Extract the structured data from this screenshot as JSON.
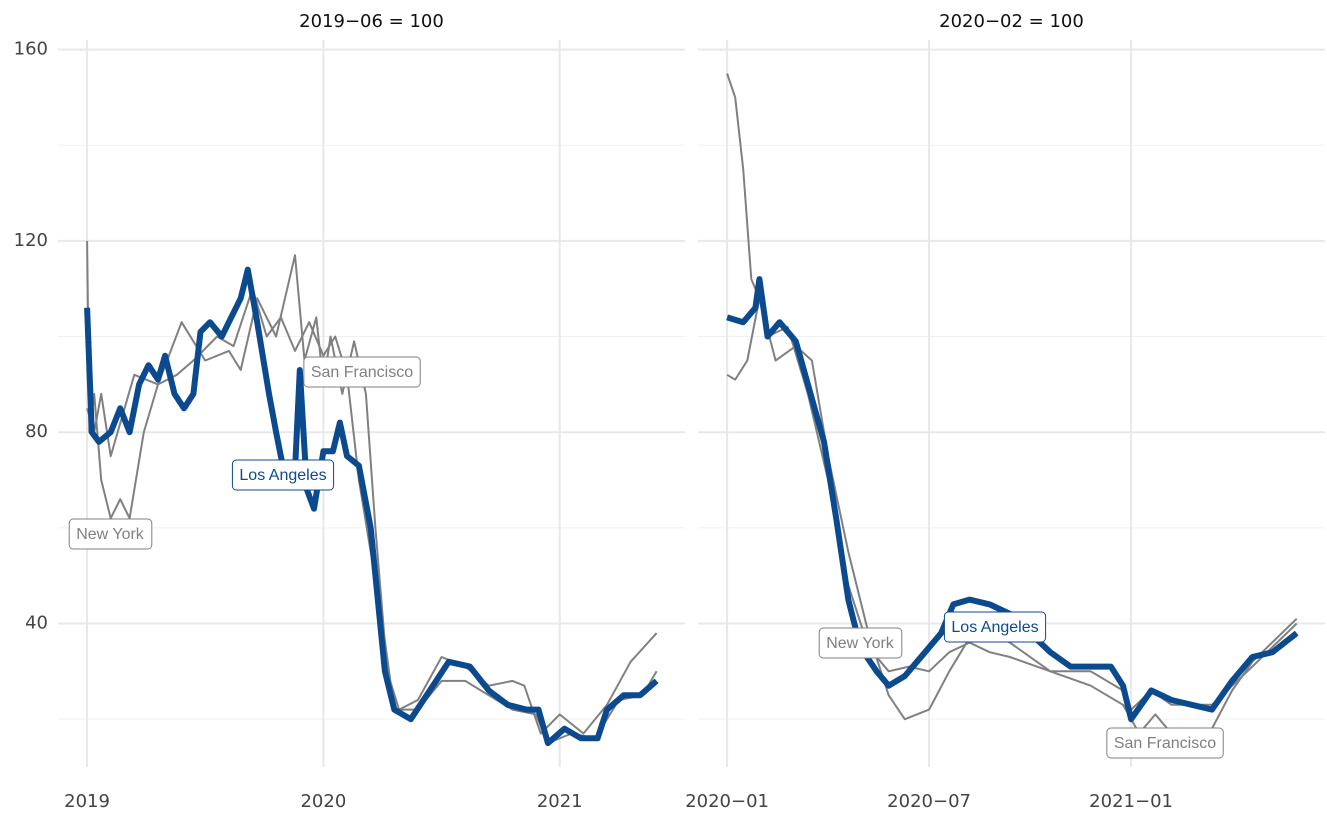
{
  "chart_data": [
    {
      "type": "line",
      "title": "2019−06 = 100",
      "xlim": [
        2018.877,
        2021.53
      ],
      "xticks": [
        2019,
        2020,
        2021
      ],
      "ylim": [
        10,
        162
      ],
      "yticks": [
        40,
        80,
        120,
        160
      ],
      "y_minor_ticks": [
        20,
        60,
        100,
        140
      ],
      "grid": true,
      "series": [
        {
          "name": "Los Angeles",
          "color": "#0b4a8f",
          "x": [
            2019.0,
            2019.02,
            2019.05,
            2019.1,
            2019.14,
            2019.18,
            2019.22,
            2019.26,
            2019.3,
            2019.33,
            2019.37,
            2019.41,
            2019.45,
            2019.48,
            2019.52,
            2019.57,
            2019.61,
            2019.65,
            2019.68,
            2019.72,
            2019.77,
            2019.8,
            2019.84,
            2019.88,
            2019.9,
            2019.93,
            2019.96,
            2020.0,
            2020.04,
            2020.07,
            2020.1,
            2020.15,
            2020.2,
            2020.23,
            2020.26,
            2020.3,
            2020.37,
            2020.45,
            2020.53,
            2020.62,
            2020.7,
            2020.78,
            2020.86,
            2020.91,
            2020.95,
            2021.02,
            2021.09,
            2021.16,
            2021.2,
            2021.27,
            2021.34,
            2021.41
          ],
          "values": [
            106,
            80,
            78,
            80,
            85,
            80,
            90,
            94,
            91,
            96,
            88,
            85,
            88,
            101,
            103,
            100,
            104,
            108,
            114,
            103,
            88,
            80,
            70,
            72,
            93,
            68,
            64,
            76,
            76,
            82,
            75,
            73,
            60,
            45,
            30,
            22,
            20,
            26,
            32,
            31,
            26,
            23,
            22,
            22,
            15,
            18,
            16,
            16,
            22,
            25,
            25,
            28
          ]
        },
        {
          "name": "New York",
          "color": "#808080",
          "x": [
            2019.0,
            2019.01,
            2019.03,
            2019.06,
            2019.1,
            2019.14,
            2019.18,
            2019.24,
            2019.3,
            2019.38,
            2019.45,
            2019.55,
            2019.62,
            2019.7,
            2019.76,
            2019.82,
            2019.88,
            2019.94,
            2020.0,
            2020.05,
            2020.1,
            2020.15,
            2020.2,
            2020.25,
            2020.3,
            2020.4,
            2020.5,
            2020.6,
            2020.7,
            2020.8,
            2020.9,
            2020.95,
            2021.05,
            2021.15,
            2021.25,
            2021.35,
            2021.41
          ],
          "values": [
            120,
            80,
            88,
            70,
            62,
            66,
            62,
            80,
            90,
            92,
            95,
            100,
            98,
            110,
            100,
            104,
            97,
            103,
            96,
            100,
            92,
            70,
            55,
            40,
            22,
            22,
            28,
            28,
            25,
            22,
            21,
            15,
            17,
            16,
            24,
            25,
            30
          ]
        },
        {
          "name": "San Francisco",
          "color": "#808080",
          "x": [
            2019.0,
            2019.03,
            2019.06,
            2019.1,
            2019.2,
            2019.3,
            2019.4,
            2019.5,
            2019.6,
            2019.65,
            2019.72,
            2019.8,
            2019.88,
            2019.92,
            2019.97,
            2020.0,
            2020.03,
            2020.08,
            2020.13,
            2020.18,
            2020.22,
            2020.27,
            2020.32,
            2020.4,
            2020.5,
            2020.6,
            2020.7,
            2020.8,
            2020.85,
            2020.92,
            2021.0,
            2021.1,
            2021.2,
            2021.3,
            2021.41
          ],
          "values": [
            85,
            80,
            88,
            75,
            92,
            90,
            103,
            95,
            97,
            93,
            108,
            100,
            117,
            95,
            104,
            90,
            100,
            88,
            99,
            88,
            60,
            30,
            22,
            24,
            33,
            31,
            27,
            28,
            27,
            17,
            21,
            17,
            23,
            32,
            38
          ]
        }
      ]
    },
    {
      "type": "line",
      "title": "2020−02 = 100",
      "xlim": [
        2019.928,
        2021.48
      ],
      "xticks": [
        {
          "value": 2020.0,
          "label": "2020−01"
        },
        {
          "value": 2020.5,
          "label": "2020−07"
        },
        {
          "value": 2021.0,
          "label": "2021−01"
        }
      ],
      "ylim": [
        10,
        162
      ],
      "yticks": [
        40,
        80,
        120,
        160
      ],
      "y_minor_ticks": [
        20,
        60,
        100,
        140
      ],
      "grid": true,
      "series": [
        {
          "name": "Los Angeles",
          "color": "#0b4a8f",
          "x": [
            2020.0,
            2020.04,
            2020.07,
            2020.08,
            2020.1,
            2020.13,
            2020.17,
            2020.2,
            2020.24,
            2020.27,
            2020.3,
            2020.33,
            2020.37,
            2020.4,
            2020.44,
            2020.48,
            2020.53,
            2020.56,
            2020.6,
            2020.65,
            2020.7,
            2020.75,
            2020.8,
            2020.85,
            2020.9,
            2020.95,
            2020.98,
            2021.0,
            2021.05,
            2021.1,
            2021.15,
            2021.2,
            2021.25,
            2021.3,
            2021.35,
            2021.41
          ],
          "values": [
            104,
            103,
            106,
            112,
            100,
            103,
            99,
            90,
            78,
            62,
            45,
            35,
            30,
            27,
            29,
            33,
            38,
            44,
            45,
            44,
            42,
            38,
            34,
            31,
            31,
            31,
            27,
            20,
            26,
            24,
            23,
            22,
            28,
            33,
            34,
            38
          ]
        },
        {
          "name": "New York",
          "color": "#808080",
          "x": [
            2020.0,
            2020.02,
            2020.04,
            2020.06,
            2020.08,
            2020.1,
            2020.15,
            2020.2,
            2020.25,
            2020.3,
            2020.35,
            2020.4,
            2020.45,
            2020.5,
            2020.55,
            2020.6,
            2020.65,
            2020.7,
            2020.8,
            2020.9,
            2020.98,
            2021.0,
            2021.05,
            2021.1,
            2021.2,
            2021.3,
            2021.41
          ],
          "values": [
            155,
            150,
            135,
            112,
            108,
            100,
            102,
            88,
            70,
            48,
            35,
            30,
            31,
            30,
            34,
            36,
            34,
            33,
            30,
            30,
            26,
            22,
            26,
            23,
            23,
            31,
            40
          ]
        },
        {
          "name": "San Francisco",
          "color": "#808080",
          "x": [
            2020.0,
            2020.02,
            2020.05,
            2020.08,
            2020.12,
            2020.17,
            2020.21,
            2020.25,
            2020.3,
            2020.35,
            2020.4,
            2020.44,
            2020.5,
            2020.55,
            2020.6,
            2020.65,
            2020.7,
            2020.8,
            2020.9,
            2020.98,
            2021.02,
            2021.06,
            2021.1,
            2021.15,
            2021.2,
            2021.25,
            2021.3,
            2021.41
          ],
          "values": [
            92,
            91,
            95,
            108,
            95,
            98,
            95,
            75,
            55,
            38,
            25,
            20,
            22,
            30,
            37,
            38,
            36,
            30,
            27,
            23,
            17,
            21,
            17,
            16,
            18,
            26,
            32,
            41
          ]
        }
      ]
    }
  ]
}
